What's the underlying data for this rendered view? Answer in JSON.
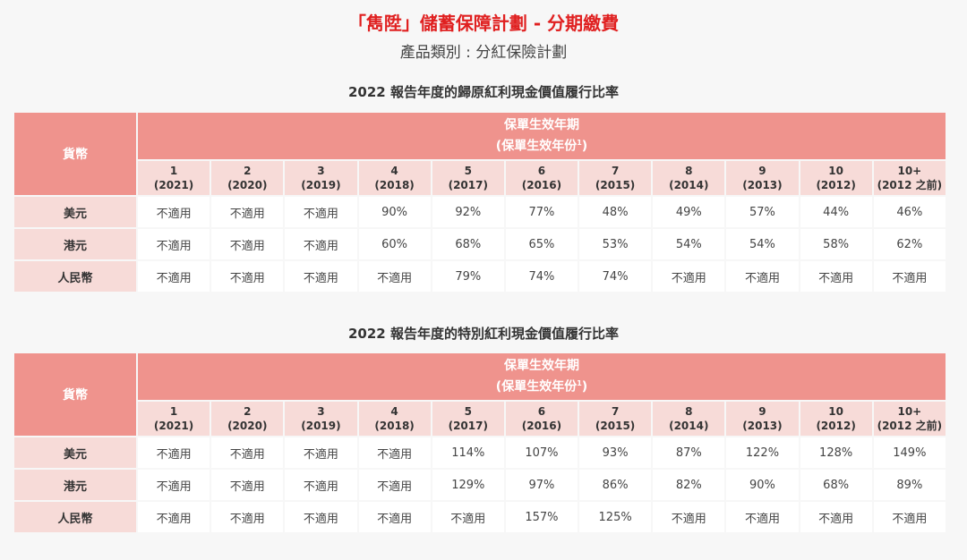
{
  "title": "「雋陞」儲蓄保障計劃 - 分期繳費",
  "subtitle": "產品類別 : 分紅保險計劃",
  "currency_header": "貨幣",
  "period_header_line1": "保單生效年期",
  "period_header_line2": "(保單生效年份",
  "period_header_sup": "1",
  "period_header_close": ")",
  "years": [
    {
      "n": "1",
      "y": "(2021)"
    },
    {
      "n": "2",
      "y": "(2020)"
    },
    {
      "n": "3",
      "y": "(2019)"
    },
    {
      "n": "4",
      "y": "(2018)"
    },
    {
      "n": "5",
      "y": "(2017)"
    },
    {
      "n": "6",
      "y": "(2016)"
    },
    {
      "n": "7",
      "y": "(2015)"
    },
    {
      "n": "8",
      "y": "(2014)"
    },
    {
      "n": "9",
      "y": "(2013)"
    },
    {
      "n": "10",
      "y": "(2012)"
    },
    {
      "n": "10+",
      "y": "(2012 之前)"
    }
  ],
  "tables": [
    {
      "title": "2022 報告年度的歸原紅利現金價值履行比率",
      "rows": [
        {
          "currency": "美元",
          "values": [
            "不適用",
            "不適用",
            "不適用",
            "90%",
            "92%",
            "77%",
            "48%",
            "49%",
            "57%",
            "44%",
            "46%"
          ]
        },
        {
          "currency": "港元",
          "values": [
            "不適用",
            "不適用",
            "不適用",
            "60%",
            "68%",
            "65%",
            "53%",
            "54%",
            "54%",
            "58%",
            "62%"
          ]
        },
        {
          "currency": "人民幣",
          "values": [
            "不適用",
            "不適用",
            "不適用",
            "不適用",
            "79%",
            "74%",
            "74%",
            "不適用",
            "不適用",
            "不適用",
            "不適用"
          ]
        }
      ]
    },
    {
      "title": "2022 報告年度的特別紅利現金價值履行比率",
      "rows": [
        {
          "currency": "美元",
          "values": [
            "不適用",
            "不適用",
            "不適用",
            "不適用",
            "114%",
            "107%",
            "93%",
            "87%",
            "122%",
            "128%",
            "149%"
          ]
        },
        {
          "currency": "港元",
          "values": [
            "不適用",
            "不適用",
            "不適用",
            "不適用",
            "129%",
            "97%",
            "86%",
            "82%",
            "90%",
            "68%",
            "89%"
          ]
        },
        {
          "currency": "人民幣",
          "values": [
            "不適用",
            "不適用",
            "不適用",
            "不適用",
            "不適用",
            "157%",
            "125%",
            "不適用",
            "不適用",
            "不適用",
            "不適用"
          ]
        }
      ]
    }
  ],
  "colors": {
    "title": "#e02020",
    "header_dark": "#ef938d",
    "header_light": "#f7dbd8"
  }
}
